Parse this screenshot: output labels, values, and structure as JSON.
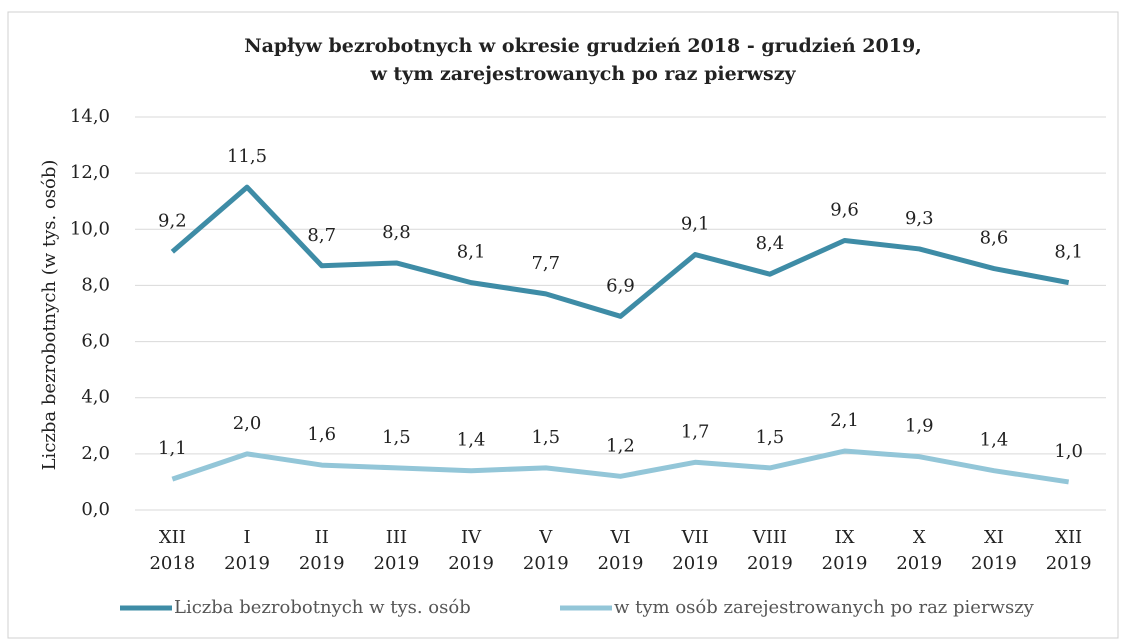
{
  "chart_data": {
    "type": "line",
    "title": [
      "Napływ  bezrobotnych w okresie grudzień 2018 - grudzień 2019,",
      "w tym zarejestrowanych po raz pierwszy"
    ],
    "y_label": "Liczba bezrobotnych (w tys. osób)",
    "categories": [
      [
        "XII",
        "2018"
      ],
      [
        "I",
        "2019"
      ],
      [
        "II",
        "2019"
      ],
      [
        "III",
        "2019"
      ],
      [
        "IV",
        "2019"
      ],
      [
        "V",
        "2019"
      ],
      [
        "VI",
        "2019"
      ],
      [
        "VII",
        "2019"
      ],
      [
        "VIII",
        "2019"
      ],
      [
        "IX",
        "2019"
      ],
      [
        "X",
        "2019"
      ],
      [
        "XI",
        "2019"
      ],
      [
        "XII",
        "2019"
      ]
    ],
    "series": [
      {
        "name": "Liczba bezrobotnych w tys. osób",
        "color": "#3e8ca6",
        "values": [
          9.2,
          11.5,
          8.7,
          8.8,
          8.1,
          7.7,
          6.9,
          9.1,
          8.4,
          9.6,
          9.3,
          8.6,
          8.1
        ],
        "value_labels": [
          "9,2",
          "11,5",
          "8,7",
          "8,8",
          "8,1",
          "7,7",
          "6,9",
          "9,1",
          "8,4",
          "9,6",
          "9,3",
          "8,6",
          "8,1"
        ]
      },
      {
        "name": "w tym osób zarejestrowanych po raz pierwszy",
        "color": "#93c6d8",
        "values": [
          1.1,
          2.0,
          1.6,
          1.5,
          1.4,
          1.5,
          1.2,
          1.7,
          1.5,
          2.1,
          1.9,
          1.4,
          1.0
        ],
        "value_labels": [
          "1,1",
          "2,0",
          "1,6",
          "1,5",
          "1,4",
          "1,5",
          "1,2",
          "1,7",
          "1,5",
          "2,1",
          "1,9",
          "1,4",
          "1,0"
        ]
      }
    ],
    "ylim": [
      0,
      14
    ],
    "yticks": [
      {
        "value": 0,
        "label": "0,0"
      },
      {
        "value": 2,
        "label": "2,0"
      },
      {
        "value": 4,
        "label": "4,0"
      },
      {
        "value": 6,
        "label": "6,0"
      },
      {
        "value": 8,
        "label": "8,0"
      },
      {
        "value": 10,
        "label": "10,0"
      },
      {
        "value": 12,
        "label": "12,0"
      },
      {
        "value": 14,
        "label": "14,0"
      }
    ],
    "grid": true,
    "legend": "bottom"
  }
}
